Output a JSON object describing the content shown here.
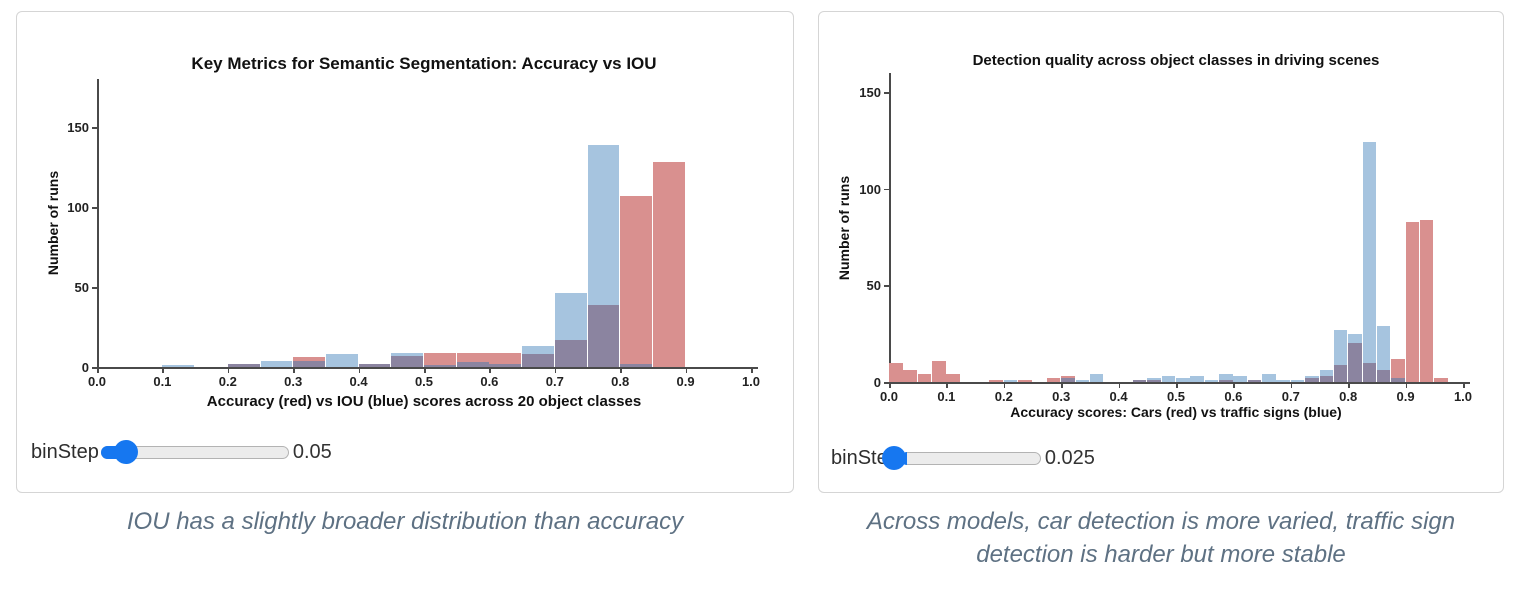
{
  "panels": [
    {
      "title": "Key Metrics for Semantic Segmentation: Accuracy vs IOU",
      "ylabel": "Number of runs",
      "xlabel": "Accuracy (red) vs IOU (blue) scores across 20 object classes",
      "slider": {
        "label": "binStep",
        "value": "0.05"
      },
      "caption": "IOU has a slightly broader distribution than accuracy"
    },
    {
      "title": "Detection quality across object classes in driving scenes",
      "ylabel": "Number of runs",
      "xlabel": "Accuracy scores: Cars (red) vs traffic signs (blue)",
      "slider": {
        "label": "binStep",
        "value": "0.025"
      },
      "caption": "Across models, car detection is more varied, traffic sign detection is harder but more stable"
    }
  ],
  "colors": {
    "red_bar": "#d9908f",
    "blue_bar": "#a6c4df",
    "overlap_bar": "#8b84a0",
    "slider_blue": "#1677f0",
    "caption": "#5e7183",
    "axis": "#4a4a4a"
  },
  "chart_data": [
    {
      "type": "bar",
      "subtype": "overlaid-histogram",
      "title": "Key Metrics for Semantic Segmentation: Accuracy vs IOU",
      "xlabel": "Accuracy (red) vs IOU (blue) scores across 20 object classes",
      "ylabel": "Number of runs",
      "bin_step": 0.05,
      "xlim": [
        0.0,
        1.0
      ],
      "ylim": [
        0,
        175
      ],
      "xticks": [
        "0.0",
        "0.1",
        "0.2",
        "0.3",
        "0.4",
        "0.5",
        "0.6",
        "0.7",
        "0.8",
        "0.9",
        "1.0"
      ],
      "yticks": [
        0,
        50,
        100,
        150
      ],
      "grid": false,
      "legend": "none; colors explained in x-axis label",
      "overlap_color": "#8b84a0",
      "series": [
        {
          "name": "Accuracy (red)",
          "color": "#d9908f",
          "bins": [
            [
              0.2,
              2
            ],
            [
              0.3,
              6
            ],
            [
              0.4,
              2
            ],
            [
              0.45,
              7
            ],
            [
              0.5,
              9
            ],
            [
              0.55,
              9
            ],
            [
              0.6,
              9
            ],
            [
              0.65,
              8
            ],
            [
              0.7,
              17
            ],
            [
              0.75,
              39
            ],
            [
              0.8,
              107
            ],
            [
              0.85,
              128
            ]
          ]
        },
        {
          "name": "IOU (blue)",
          "color": "#a6c4df",
          "bins": [
            [
              0.1,
              1
            ],
            [
              0.2,
              2
            ],
            [
              0.25,
              4
            ],
            [
              0.3,
              4
            ],
            [
              0.35,
              8
            ],
            [
              0.4,
              2
            ],
            [
              0.45,
              9
            ],
            [
              0.5,
              1
            ],
            [
              0.55,
              3
            ],
            [
              0.6,
              2
            ],
            [
              0.65,
              13
            ],
            [
              0.7,
              46
            ],
            [
              0.75,
              139
            ],
            [
              0.8,
              2
            ]
          ]
        }
      ]
    },
    {
      "type": "bar",
      "subtype": "overlaid-histogram",
      "title": "Detection quality across object classes in driving scenes",
      "xlabel": "Accuracy scores: Cars (red) vs traffic signs (blue)",
      "ylabel": "Number of runs",
      "bin_step": 0.025,
      "xlim": [
        0.0,
        1.0
      ],
      "ylim": [
        0,
        160
      ],
      "xticks": [
        "0.0",
        "0.1",
        "0.2",
        "0.3",
        "0.4",
        "0.5",
        "0.6",
        "0.7",
        "0.8",
        "0.9",
        "1.0"
      ],
      "yticks": [
        0,
        50,
        100,
        150
      ],
      "grid": false,
      "legend": "none; colors explained in x-axis label",
      "overlap_color": "#8b84a0",
      "series": [
        {
          "name": "Cars (red)",
          "color": "#d9908f",
          "bins": [
            [
              0.0,
              10
            ],
            [
              0.025,
              6
            ],
            [
              0.05,
              4
            ],
            [
              0.075,
              11
            ],
            [
              0.1,
              4
            ],
            [
              0.175,
              1
            ],
            [
              0.225,
              1
            ],
            [
              0.275,
              2
            ],
            [
              0.3,
              3
            ],
            [
              0.425,
              1
            ],
            [
              0.45,
              1
            ],
            [
              0.575,
              1
            ],
            [
              0.625,
              1
            ],
            [
              0.725,
              2
            ],
            [
              0.75,
              3
            ],
            [
              0.775,
              9
            ],
            [
              0.8,
              20
            ],
            [
              0.825,
              10
            ],
            [
              0.85,
              6
            ],
            [
              0.875,
              12
            ],
            [
              0.9,
              83
            ],
            [
              0.925,
              84
            ],
            [
              0.95,
              2
            ]
          ]
        },
        {
          "name": "Traffic signs (blue)",
          "color": "#a6c4df",
          "bins": [
            [
              0.2,
              1
            ],
            [
              0.3,
              2
            ],
            [
              0.325,
              1
            ],
            [
              0.35,
              4
            ],
            [
              0.425,
              1
            ],
            [
              0.45,
              2
            ],
            [
              0.475,
              3
            ],
            [
              0.5,
              2
            ],
            [
              0.525,
              3
            ],
            [
              0.55,
              1
            ],
            [
              0.575,
              4
            ],
            [
              0.6,
              3
            ],
            [
              0.625,
              1
            ],
            [
              0.65,
              4
            ],
            [
              0.675,
              1
            ],
            [
              0.7,
              1
            ],
            [
              0.725,
              3
            ],
            [
              0.75,
              6
            ],
            [
              0.775,
              27
            ],
            [
              0.8,
              25
            ],
            [
              0.825,
              124
            ],
            [
              0.85,
              29
            ],
            [
              0.875,
              2
            ]
          ]
        }
      ]
    }
  ]
}
